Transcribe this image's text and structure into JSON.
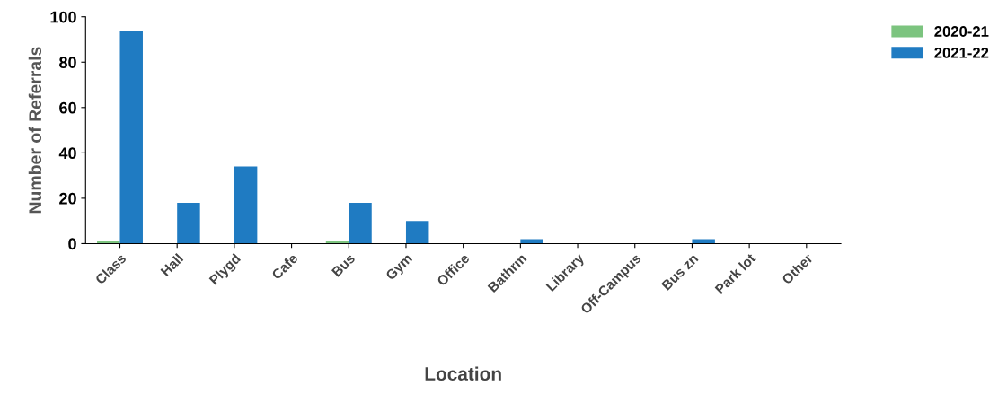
{
  "chart_data": {
    "type": "bar",
    "xlabel": "Location",
    "ylabel": "Number of Referrals",
    "categories": [
      "Class",
      "Hall",
      "Plygd",
      "Cafe",
      "Bus",
      "Gym",
      "Office",
      "Bathrm",
      "Library",
      "Off-Campus",
      "Bus zn",
      "Park lot",
      "Other"
    ],
    "series": [
      {
        "name": "2020-21",
        "color": "#7cc47f",
        "values": [
          1,
          0,
          0,
          0,
          1,
          0,
          0,
          0,
          0,
          0,
          0,
          0,
          0
        ]
      },
      {
        "name": "2021-22",
        "color": "#1f7bc2",
        "values": [
          94,
          18,
          34,
          0,
          18,
          10,
          0,
          2,
          0,
          0,
          2,
          0,
          0
        ]
      }
    ],
    "ylim": [
      0,
      100
    ],
    "yticks": [
      0,
      20,
      40,
      60,
      80,
      100
    ],
    "grid": false,
    "legend": "top right"
  }
}
